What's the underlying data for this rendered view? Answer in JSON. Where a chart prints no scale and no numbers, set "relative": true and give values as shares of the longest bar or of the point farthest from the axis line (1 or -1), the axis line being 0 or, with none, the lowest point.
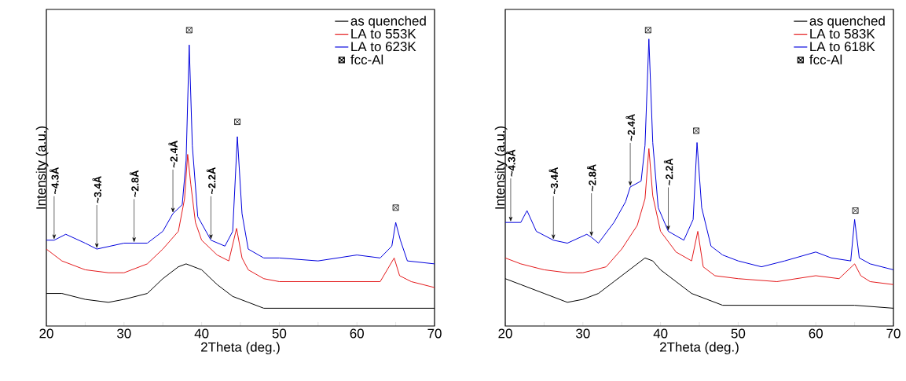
{
  "chart_data": [
    {
      "type": "line",
      "relative": true,
      "xlabel": "2Theta (deg.)",
      "ylabel": "Intensity (a.u.)",
      "xlim": [
        20,
        70
      ],
      "xticks": [
        20,
        {
          "value": 25,
          "label": null
        },
        30,
        {
          "value": 35,
          "label": null
        },
        40,
        {
          "value": 45,
          "label": null
        },
        50,
        {
          "value": 55,
          "label": null
        },
        60,
        {
          "value": 65,
          "label": null
        },
        70
      ],
      "tick_labels": "x",
      "legend": "top right",
      "marker": "none",
      "series": [
        {
          "name": "as quenched",
          "color": "#000000",
          "x": [
            20,
            22,
            25,
            28,
            30,
            33,
            35,
            37,
            38,
            40,
            42,
            44,
            46,
            48,
            50,
            55,
            60,
            65,
            70
          ],
          "values": [
            0.11,
            0.11,
            0.09,
            0.08,
            0.09,
            0.11,
            0.16,
            0.2,
            0.21,
            0.19,
            0.14,
            0.1,
            0.08,
            0.06,
            0.06,
            0.06,
            0.06,
            0.06,
            0.06
          ]
        },
        {
          "name": "LA to 553K",
          "color": "#e41a1c",
          "x": [
            20,
            22,
            25,
            28,
            30,
            33,
            35,
            37,
            37.8,
            38.2,
            38.6,
            39.2,
            40,
            42,
            43.5,
            44.5,
            45.2,
            46,
            48,
            50,
            55,
            60,
            63,
            64.8,
            65.5,
            67,
            70
          ],
          "values": [
            0.26,
            0.22,
            0.19,
            0.18,
            0.18,
            0.21,
            0.26,
            0.32,
            0.43,
            0.58,
            0.48,
            0.35,
            0.29,
            0.24,
            0.22,
            0.33,
            0.23,
            0.19,
            0.16,
            0.15,
            0.15,
            0.15,
            0.15,
            0.23,
            0.17,
            0.15,
            0.13
          ]
        },
        {
          "name": "LA to 623K",
          "color": "#0000dd",
          "x": [
            20,
            21,
            22.5,
            25,
            26.5,
            30,
            31.3,
            33,
            35,
            36.3,
            37.5,
            38,
            38.4,
            38.8,
            39.5,
            41.2,
            43,
            44,
            44.6,
            45.2,
            46,
            48,
            50,
            55,
            60,
            63,
            64.5,
            65,
            65.6,
            66.5,
            70
          ],
          "values": [
            0.29,
            0.29,
            0.31,
            0.28,
            0.26,
            0.28,
            0.28,
            0.28,
            0.32,
            0.38,
            0.41,
            0.56,
            0.95,
            0.61,
            0.37,
            0.29,
            0.27,
            0.32,
            0.64,
            0.38,
            0.26,
            0.23,
            0.23,
            0.22,
            0.24,
            0.23,
            0.27,
            0.35,
            0.29,
            0.22,
            0.21
          ]
        },
        {
          "name": "fcc-Al",
          "type": "scatter",
          "marker": "cross",
          "color": "#000000",
          "x": [
            38.4,
            44.6,
            65
          ],
          "values": [
            1,
            0.69,
            0.4
          ]
        }
      ],
      "annotations": [
        {
          "text": "~4.3Å",
          "x": 21,
          "y": 0.29
        },
        {
          "text": "~3.4Å",
          "x": 26.5,
          "y": 0.26
        },
        {
          "text": "~2.8Å",
          "x": 31.3,
          "y": 0.28
        },
        {
          "text": "~2.4Å",
          "x": 36.3,
          "y": 0.38
        },
        {
          "text": "~2.2Å",
          "x": 41.2,
          "y": 0.29
        }
      ]
    },
    {
      "type": "line",
      "relative": true,
      "xlabel": "2Theta (deg.)",
      "ylabel": "Intensity (a.u.)",
      "xlim": [
        20,
        70
      ],
      "xticks": [
        20,
        {
          "value": 25,
          "label": null
        },
        30,
        {
          "value": 35,
          "label": null
        },
        40,
        {
          "value": 45,
          "label": null
        },
        50,
        {
          "value": 55,
          "label": null
        },
        60,
        {
          "value": 65,
          "label": null
        },
        70
      ],
      "tick_labels": "x",
      "legend": "top right",
      "marker": "none",
      "series": [
        {
          "name": "as quenched",
          "color": "#000000",
          "x": [
            20,
            22,
            25,
            28,
            30,
            32,
            34,
            36,
            38,
            39,
            40,
            42,
            44,
            46,
            48,
            50,
            55,
            60,
            65,
            70
          ],
          "values": [
            0.16,
            0.14,
            0.11,
            0.08,
            0.09,
            0.11,
            0.15,
            0.19,
            0.23,
            0.22,
            0.19,
            0.15,
            0.11,
            0.09,
            0.07,
            0.07,
            0.07,
            0.07,
            0.07,
            0.06
          ]
        },
        {
          "name": "LA to 583K",
          "color": "#e41a1c",
          "x": [
            20,
            22,
            25,
            28,
            30,
            33,
            35,
            37,
            38,
            38.5,
            39,
            40,
            42,
            44,
            44.8,
            45.5,
            47,
            50,
            55,
            60,
            63,
            65,
            65.8,
            67,
            70
          ],
          "values": [
            0.23,
            0.21,
            0.19,
            0.18,
            0.18,
            0.2,
            0.26,
            0.34,
            0.43,
            0.6,
            0.44,
            0.32,
            0.25,
            0.22,
            0.32,
            0.2,
            0.17,
            0.16,
            0.15,
            0.17,
            0.16,
            0.21,
            0.17,
            0.15,
            0.14
          ]
        },
        {
          "name": "LA to 618K",
          "color": "#0000dd",
          "x": [
            20,
            20.7,
            22,
            22.8,
            24,
            26.2,
            28,
            30.5,
            31.1,
            32,
            34,
            35.5,
            36.1,
            37.5,
            38,
            38.5,
            39,
            39.7,
            41,
            43,
            44.2,
            44.7,
            45.3,
            46.5,
            48,
            50,
            53,
            56,
            60,
            62,
            64.5,
            65,
            65.6,
            67,
            70
          ],
          "values": [
            0.35,
            0.35,
            0.35,
            0.39,
            0.32,
            0.29,
            0.28,
            0.31,
            0.3,
            0.28,
            0.35,
            0.42,
            0.47,
            0.49,
            0.61,
            0.97,
            0.62,
            0.4,
            0.32,
            0.29,
            0.36,
            0.62,
            0.4,
            0.27,
            0.24,
            0.22,
            0.2,
            0.22,
            0.25,
            0.23,
            0.22,
            0.36,
            0.23,
            0.21,
            0.19
          ]
        },
        {
          "name": "fcc-Al",
          "type": "scatter",
          "marker": "cross",
          "color": "#000000",
          "x": [
            38.4,
            44.6,
            65.1
          ],
          "values": [
            1,
            0.66,
            0.39
          ]
        }
      ],
      "annotations": [
        {
          "text": "~4.3Å",
          "x": 20.7,
          "y": 0.35
        },
        {
          "text": "~3.4Å",
          "x": 26.2,
          "y": 0.29
        },
        {
          "text": "~2.8Å",
          "x": 31.1,
          "y": 0.3
        },
        {
          "text": "~2.4Å",
          "x": 36.1,
          "y": 0.47
        },
        {
          "text": "~2.2Å",
          "x": 41,
          "y": 0.32
        }
      ]
    }
  ]
}
